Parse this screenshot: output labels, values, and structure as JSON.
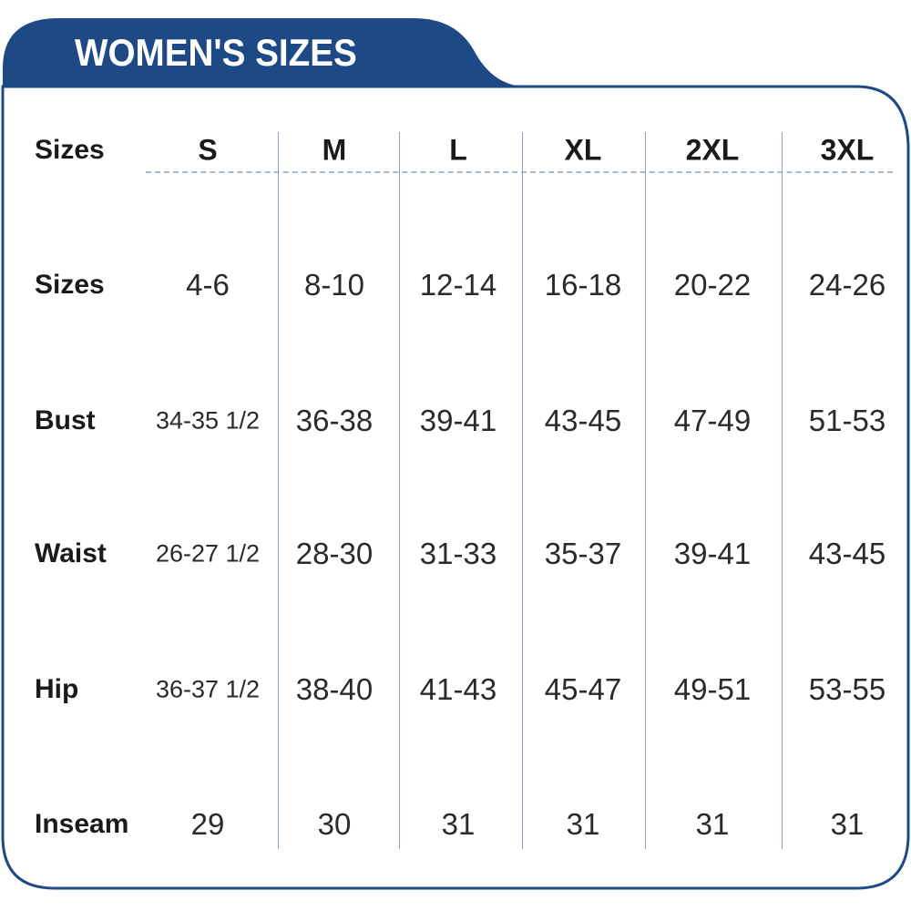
{
  "title": "WOMEN'S SIZES",
  "colors": {
    "brand": "#1d4a85",
    "divider": "#8aa3c4"
  },
  "table": {
    "header_label": "Sizes",
    "columns": [
      "S",
      "M",
      "L",
      "XL",
      "2XL",
      "3XL"
    ],
    "rows": [
      {
        "label": "Sizes",
        "values": [
          "4-6",
          "8-10",
          "12-14",
          "16-18",
          "20-22",
          "24-26"
        ]
      },
      {
        "label": "Bust",
        "values": [
          "34-35 1/2",
          "36-38",
          "39-41",
          "43-45",
          "47-49",
          "51-53"
        ]
      },
      {
        "label": "Waist",
        "values": [
          "26-27 1/2",
          "28-30",
          "31-33",
          "35-37",
          "39-41",
          "43-45"
        ]
      },
      {
        "label": "Hip",
        "values": [
          "36-37 1/2",
          "38-40",
          "41-43",
          "45-47",
          "49-51",
          "53-55"
        ]
      },
      {
        "label": "Inseam",
        "values": [
          "29",
          "30",
          "31",
          "31",
          "31",
          "31"
        ]
      }
    ]
  }
}
